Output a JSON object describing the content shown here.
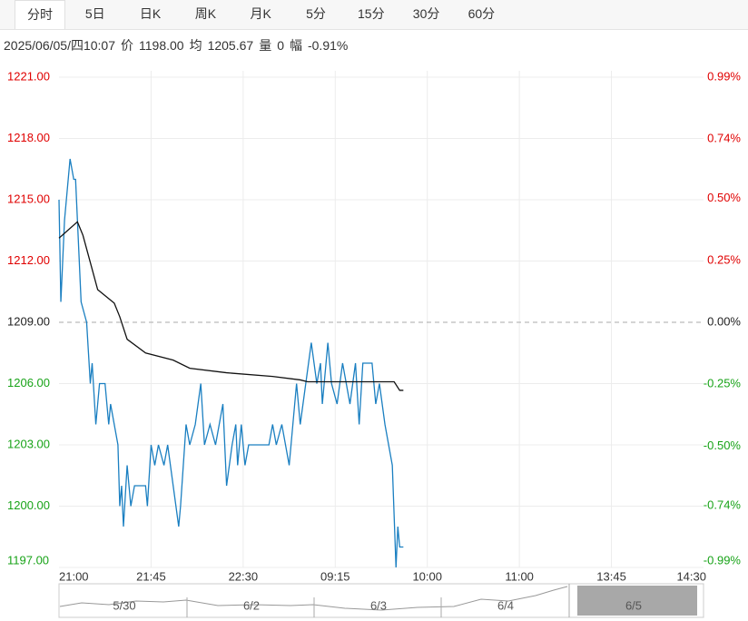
{
  "tabs": [
    "分时",
    "5日",
    "日K",
    "周K",
    "月K",
    "5分",
    "15分",
    "30分",
    "60分"
  ],
  "info": {
    "datetime": "2025/06/05/四10:07",
    "price_label": "价",
    "price": "1198.00",
    "avg_label": "均",
    "avg": "1205.67",
    "volume_label": "量",
    "volume": "0",
    "change_label": "幅",
    "change": "-0.91%"
  },
  "navigator": {
    "labels": [
      "5/30",
      "6/2",
      "6/3",
      "6/4",
      "6/5"
    ]
  },
  "chart_data": {
    "type": "line",
    "xlim": [
      0,
      350
    ],
    "xticks": [
      {
        "value": 0,
        "label": "21:00"
      },
      {
        "value": 50,
        "label": "21:45"
      },
      {
        "value": 100,
        "label": "22:30"
      },
      {
        "value": 150,
        "label": "09:15"
      },
      {
        "value": 200,
        "label": "10:00"
      },
      {
        "value": 250,
        "label": "11:00"
      },
      {
        "value": 300,
        "label": "13:45"
      },
      {
        "value": 350,
        "label": "14:30"
      }
    ],
    "ylim": [
      1197,
      1221
    ],
    "yticks": [
      {
        "value": 1221,
        "label": "1221.00"
      },
      {
        "value": 1218,
        "label": "1218.00"
      },
      {
        "value": 1215,
        "label": "1215.00"
      },
      {
        "value": 1212,
        "label": "1212.00"
      },
      {
        "value": 1209,
        "label": "1209.00"
      },
      {
        "value": 1206,
        "label": "1206.00"
      },
      {
        "value": 1203,
        "label": "1203.00"
      },
      {
        "value": 1200,
        "label": "1200.00"
      },
      {
        "value": 1197,
        "label": "1197.00"
      }
    ],
    "y2lim": [
      -0.99,
      0.99
    ],
    "y2ticks": [
      {
        "value": 0.99,
        "label": "0.99%"
      },
      {
        "value": 0.74,
        "label": "0.74%"
      },
      {
        "value": 0.5,
        "label": "0.50%"
      },
      {
        "value": 0.25,
        "label": "0.25%"
      },
      {
        "value": 0,
        "label": "0.00%"
      },
      {
        "value": -0.25,
        "label": "-0.25%"
      },
      {
        "value": -0.5,
        "label": "-0.50%"
      },
      {
        "value": -0.74,
        "label": "-0.74%"
      },
      {
        "value": -0.99,
        "label": "-0.99%"
      }
    ],
    "up_color": "#e00000",
    "down_color": "#18a318",
    "flat_color": "#222222",
    "grid": true,
    "series": [
      {
        "color": "#1a7fc1",
        "x": [
          0,
          1,
          3,
          6,
          8,
          9,
          10,
          12,
          15,
          17,
          18,
          20,
          22,
          25,
          27,
          28,
          30,
          32,
          33,
          34,
          35,
          37,
          39,
          41,
          47,
          48,
          50,
          52,
          54,
          57,
          59,
          62,
          65,
          66,
          69,
          71,
          74,
          77,
          79,
          82,
          85,
          89,
          91,
          94,
          96,
          97,
          99,
          101,
          103,
          114,
          116,
          118,
          121,
          125,
          127,
          129,
          131,
          137,
          140,
          142,
          143,
          146,
          148,
          151,
          154,
          158,
          161,
          163,
          165,
          170,
          172,
          174,
          177,
          179,
          181,
          183,
          184,
          185,
          187
        ],
        "values": [
          1215,
          1210,
          1214,
          1217,
          1216,
          1216,
          1214,
          1210,
          1209,
          1206,
          1207,
          1204,
          1206,
          1206,
          1204,
          1205,
          1204,
          1203,
          1200,
          1201,
          1199,
          1202,
          1200,
          1201,
          1201,
          1200,
          1203,
          1202,
          1203,
          1202,
          1203,
          1201,
          1199,
          1200,
          1204,
          1203,
          1204,
          1206,
          1203,
          1204,
          1203,
          1205,
          1201,
          1203,
          1204,
          1202,
          1204,
          1202,
          1203,
          1203,
          1204,
          1203,
          1204,
          1202,
          1204,
          1206,
          1204,
          1208,
          1206,
          1207,
          1205,
          1208,
          1206,
          1205,
          1207,
          1205,
          1207,
          1204,
          1207,
          1207,
          1205,
          1206,
          1204,
          1203,
          1202,
          1197,
          1199,
          1198,
          1198
        ]
      },
      {
        "color": "#111111",
        "x": [
          0,
          10,
          13,
          17,
          21,
          30,
          33,
          37,
          47,
          62,
          71,
          91,
          116,
          131,
          135,
          182,
          185,
          187
        ],
        "values": [
          1213.12,
          1213.92,
          1213.26,
          1211.93,
          1210.6,
          1209.94,
          1209.27,
          1208.17,
          1207.5,
          1207.15,
          1206.75,
          1206.53,
          1206.35,
          1206.18,
          1206.09,
          1206.09,
          1205.67,
          1205.67
        ]
      }
    ]
  }
}
